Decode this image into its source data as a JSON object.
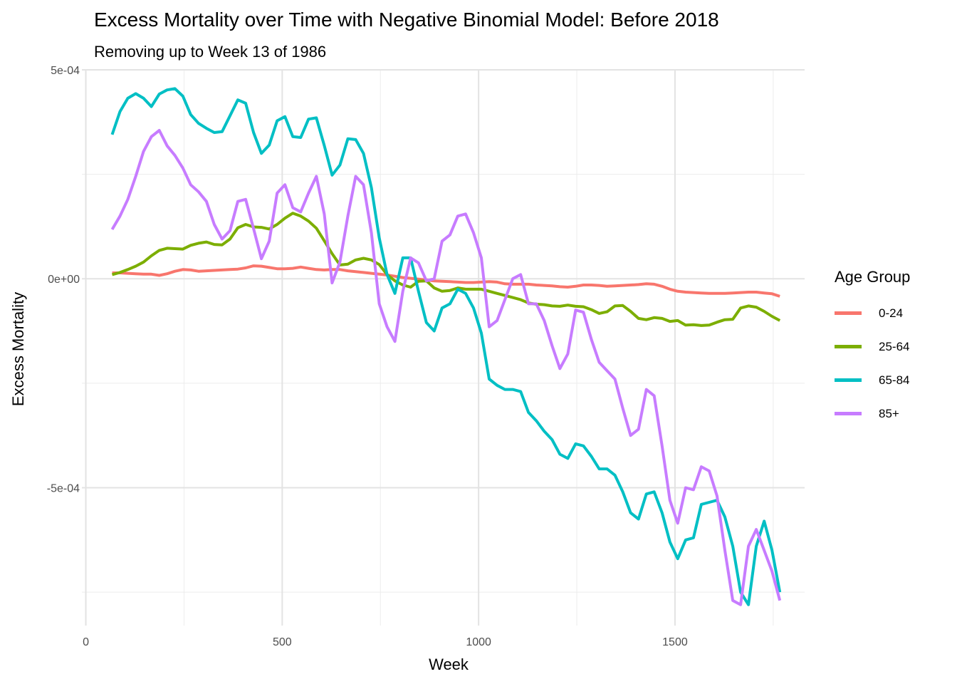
{
  "chart_data": {
    "type": "line",
    "title": "Excess Mortality over Time with Negative Binomial Model: Before 2018",
    "subtitle": "Removing up to Week 13 of 1986",
    "xlabel": "Week",
    "ylabel": "Excess Mortality",
    "xlim": [
      -10,
      1830
    ],
    "ylim": [
      -0.00083,
      0.0005
    ],
    "x_ticks": [
      0,
      500,
      1000,
      1500
    ],
    "x_tick_labels": [
      "0",
      "500",
      "1000",
      "1500"
    ],
    "y_ticks": [
      0.0005,
      0,
      -0.0005
    ],
    "y_tick_labels": [
      "5e-04",
      "0e+00",
      "-5e-04"
    ],
    "grid": true,
    "legend_title": "Age Group",
    "legend_position": "right",
    "x": [
      67,
      87,
      107,
      127,
      147,
      167,
      187,
      207,
      227,
      247,
      267,
      287,
      307,
      327,
      347,
      367,
      387,
      407,
      427,
      447,
      467,
      487,
      507,
      527,
      547,
      567,
      587,
      607,
      627,
      647,
      667,
      687,
      707,
      727,
      747,
      767,
      787,
      807,
      827,
      847,
      867,
      887,
      907,
      927,
      947,
      967,
      987,
      1007,
      1027,
      1047,
      1067,
      1087,
      1107,
      1127,
      1147,
      1167,
      1187,
      1207,
      1227,
      1247,
      1267,
      1287,
      1307,
      1327,
      1347,
      1367,
      1387,
      1407,
      1427,
      1447,
      1467,
      1487,
      1507,
      1527,
      1547,
      1567,
      1587,
      1607,
      1627,
      1647,
      1667,
      1687,
      1707,
      1727,
      1747,
      1767
    ],
    "series": [
      {
        "name": "0-24",
        "color": "#F8766D",
        "values": [
          1.4e-05,
          1.4e-05,
          1.3e-05,
          1.2e-05,
          1.1e-05,
          1.1e-05,
          8e-06,
          1.2e-05,
          1.8e-05,
          2.2e-05,
          2.1e-05,
          1.8e-05,
          1.9e-05,
          2e-05,
          2.1e-05,
          2.2e-05,
          2.3e-05,
          2.6e-05,
          3.1e-05,
          3e-05,
          2.7e-05,
          2.4e-05,
          2.4e-05,
          2.5e-05,
          2.8e-05,
          2.5e-05,
          2.2e-05,
          2.1e-05,
          2.2e-05,
          2.2e-05,
          1.9e-05,
          1.7e-05,
          1.5e-05,
          1.3e-05,
          1.1e-05,
          9e-06,
          6e-06,
          3e-06,
          1e-06,
          -1e-06,
          -3e-06,
          -5e-06,
          -6e-06,
          -7e-06,
          -8e-06,
          -9e-06,
          -9e-06,
          -8e-06,
          -7e-06,
          -8e-06,
          -1.2e-05,
          -1.3e-05,
          -1.3e-05,
          -1.3e-05,
          -1.5e-05,
          -1.6e-05,
          -1.7e-05,
          -1.9e-05,
          -2e-05,
          -1.8e-05,
          -1.5e-05,
          -1.5e-05,
          -1.6e-05,
          -1.8e-05,
          -1.7e-05,
          -1.6e-05,
          -1.5e-05,
          -1.4e-05,
          -1.2e-05,
          -1.3e-05,
          -1.8e-05,
          -2.5e-05,
          -3e-05,
          -3.2e-05,
          -3.3e-05,
          -3.4e-05,
          -3.5e-05,
          -3.5e-05,
          -3.5e-05,
          -3.4e-05,
          -3.3e-05,
          -3.2e-05,
          -3.2e-05,
          -3.4e-05,
          -3.6e-05,
          -4.2e-05
        ]
      },
      {
        "name": "25-64",
        "color": "#7CAE00",
        "values": [
          1e-05,
          1.5e-05,
          2.2e-05,
          3e-05,
          4e-05,
          5.5e-05,
          6.8e-05,
          7.3e-05,
          7.2e-05,
          7.1e-05,
          8e-05,
          8.5e-05,
          8.8e-05,
          8.2e-05,
          8.1e-05,
          9.5e-05,
          0.000122,
          0.00013,
          0.000124,
          0.000123,
          0.000119,
          0.00013,
          0.000145,
          0.000157,
          0.00015,
          0.000138,
          0.000121,
          9.1e-05,
          6e-05,
          3.3e-05,
          3.5e-05,
          4.5e-05,
          4.9e-05,
          4.5e-05,
          3.4e-05,
          1e-05,
          -5e-06,
          -1.5e-05,
          -2e-05,
          -6e-06,
          -5e-06,
          -2.2e-05,
          -3e-05,
          -2.8e-05,
          -2.2e-05,
          -2.5e-05,
          -2.5e-05,
          -2.5e-05,
          -3e-05,
          -3.5e-05,
          -4e-05,
          -4.5e-05,
          -5e-05,
          -5.8e-05,
          -6.1e-05,
          -6.2e-05,
          -6.5e-05,
          -6.6e-05,
          -6.3e-05,
          -6.6e-05,
          -6.7e-05,
          -7.4e-05,
          -8.3e-05,
          -7.9e-05,
          -6.5e-05,
          -6.4e-05,
          -7.8e-05,
          -9.5e-05,
          -9.8e-05,
          -9.3e-05,
          -9.5e-05,
          -0.000102,
          -0.0001,
          -0.000111,
          -0.00011,
          -0.000112,
          -0.000111,
          -0.000104,
          -9.8e-05,
          -9.7e-05,
          -7e-05,
          -6.5e-05,
          -6.8e-05,
          -7.8e-05,
          -9e-05,
          -0.0001
        ]
      },
      {
        "name": "65-84",
        "color": "#00BFC4",
        "values": [
          0.000345,
          0.0004,
          0.000432,
          0.000443,
          0.000432,
          0.000412,
          0.000442,
          0.000452,
          0.000455,
          0.000437,
          0.000393,
          0.000372,
          0.00036,
          0.00035,
          0.000352,
          0.00039,
          0.000428,
          0.00042,
          0.00035,
          0.0003,
          0.00032,
          0.000378,
          0.000388,
          0.00034,
          0.000338,
          0.000382,
          0.000385,
          0.000319,
          0.000248,
          0.000272,
          0.000335,
          0.000333,
          0.0003,
          0.000218,
          9.8e-05,
          1e-05,
          -3.5e-05,
          5e-05,
          5e-05,
          -3e-05,
          -0.000105,
          -0.000125,
          -7e-05,
          -6e-05,
          -2.5e-05,
          -3.5e-05,
          -7e-05,
          -0.00013,
          -0.00024,
          -0.000255,
          -0.000265,
          -0.000265,
          -0.00027,
          -0.00032,
          -0.00034,
          -0.000365,
          -0.000385,
          -0.00042,
          -0.00043,
          -0.000395,
          -0.0004,
          -0.000425,
          -0.000455,
          -0.000455,
          -0.00047,
          -0.00051,
          -0.00056,
          -0.000575,
          -0.000515,
          -0.00051,
          -0.00056,
          -0.00063,
          -0.00067,
          -0.000625,
          -0.00062,
          -0.00054,
          -0.000535,
          -0.00053,
          -0.00057,
          -0.00064,
          -0.00075,
          -0.00078,
          -0.00064,
          -0.00058,
          -0.00065,
          -0.00075
        ]
      },
      {
        "name": "85+",
        "color": "#C77CFF",
        "values": [
          0.000118,
          0.00015,
          0.00019,
          0.000245,
          0.000305,
          0.00034,
          0.000355,
          0.000318,
          0.000295,
          0.000265,
          0.000225,
          0.000208,
          0.000185,
          0.00013,
          9.5e-05,
          0.000115,
          0.000185,
          0.00019,
          0.00012,
          4.8e-05,
          9e-05,
          0.000205,
          0.000225,
          0.00017,
          0.00016,
          0.000205,
          0.000245,
          0.000155,
          -1e-05,
          4e-05,
          0.00015,
          0.000245,
          0.000225,
          0.00011,
          -6e-05,
          -0.000115,
          -0.00015,
          -3e-05,
          5e-05,
          3.8e-05,
          -5e-06,
          0.0,
          9e-05,
          0.000105,
          0.00015,
          0.000155,
          0.00011,
          5e-05,
          -0.000115,
          -0.0001,
          -5e-05,
          0.0,
          1e-05,
          -6e-05,
          -6e-05,
          -0.0001,
          -0.00016,
          -0.000215,
          -0.00018,
          -7.5e-05,
          -8e-05,
          -0.000145,
          -0.0002,
          -0.00022,
          -0.00024,
          -0.00031,
          -0.000375,
          -0.00036,
          -0.000265,
          -0.00028,
          -0.0004,
          -0.00053,
          -0.000585,
          -0.0005,
          -0.000505,
          -0.00045,
          -0.00046,
          -0.00052,
          -0.00065,
          -0.00077,
          -0.00078,
          -0.00064,
          -0.0006,
          -0.00065,
          -0.0007,
          -0.00077
        ]
      }
    ]
  }
}
